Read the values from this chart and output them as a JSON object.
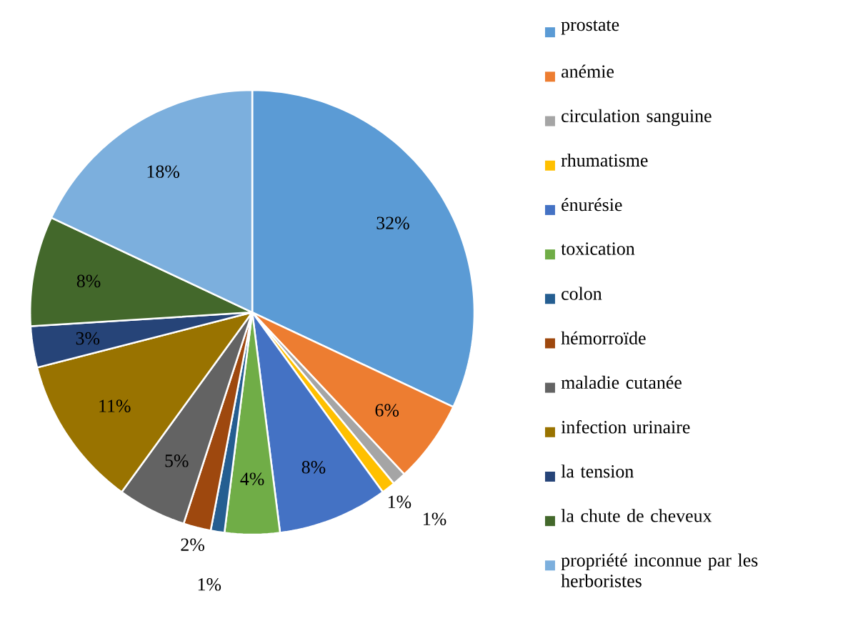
{
  "chart_data": {
    "type": "pie",
    "categories": [
      "prostate",
      "anémie",
      "circulation sanguine",
      "rhumatisme",
      "énurésie",
      "toxication",
      "colon",
      "hémorroïde",
      "maladie cutanée",
      "infection urinaire",
      "la tension",
      "la chute de  cheveux",
      "propriété inconnue par les herboristes"
    ],
    "values": [
      32,
      6,
      1,
      1,
      8,
      4,
      1,
      2,
      5,
      11,
      3,
      8,
      18
    ],
    "value_labels": [
      "32%",
      "6%",
      "1%",
      "1%",
      "8%",
      "4%",
      "1%",
      "2%",
      "5%",
      "11%",
      "3%",
      "8%",
      "18%"
    ],
    "colors": [
      "#5b9bd5",
      "#ed7d31",
      "#a5a5a5",
      "#ffc000",
      "#4472c4",
      "#70ad47",
      "#255e91",
      "#9e480e",
      "#636363",
      "#997300",
      "#264478",
      "#43682b",
      "#7cafdd"
    ],
    "legend": "right"
  }
}
